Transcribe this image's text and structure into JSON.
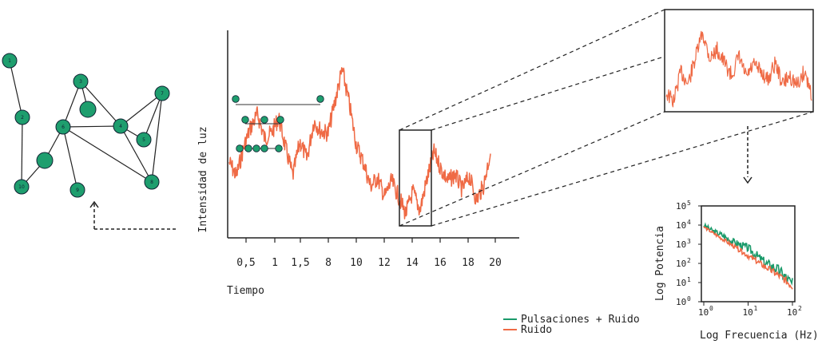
{
  "colors": {
    "green": "#1a9a6a",
    "node_fill": "#1e9e6e",
    "orange": "#ef6a45",
    "ink": "#1a1a1a"
  },
  "network": {
    "nodes": [
      {
        "id": "1",
        "label": "1"
      },
      {
        "id": "2",
        "label": "2"
      },
      {
        "id": "10",
        "label": "10"
      },
      {
        "id": "3",
        "label": "3"
      },
      {
        "id": "u1",
        "label": ""
      },
      {
        "id": "6",
        "label": "6"
      },
      {
        "id": "u2",
        "label": ""
      },
      {
        "id": "9",
        "label": "9"
      },
      {
        "id": "4",
        "label": "4"
      },
      {
        "id": "5",
        "label": "5"
      },
      {
        "id": "7",
        "label": "7"
      },
      {
        "id": "8",
        "label": "8"
      }
    ],
    "edges": [
      [
        "1",
        "2"
      ],
      [
        "2",
        "10"
      ],
      [
        "3",
        "u1"
      ],
      [
        "3",
        "6"
      ],
      [
        "3",
        "4"
      ],
      [
        "6",
        "u2"
      ],
      [
        "6",
        "9"
      ],
      [
        "6",
        "4"
      ],
      [
        "6",
        "8"
      ],
      [
        "u2",
        "10"
      ],
      [
        "4",
        "5"
      ],
      [
        "4",
        "7"
      ],
      [
        "4",
        "8"
      ],
      [
        "5",
        "7"
      ],
      [
        "7",
        "8"
      ]
    ]
  },
  "chart_data": [
    {
      "type": "line",
      "ylabel": "Intensidad de luz",
      "xlabel": "Tiempo",
      "x_tick_labels": [
        "0,5",
        "1",
        "1,5",
        "8",
        "10",
        "12",
        "14",
        "16",
        "18",
        "20"
      ],
      "series": [
        {
          "values": [
            0.38,
            0.3,
            0.46,
            0.58,
            0.66,
            0.52,
            0.55,
            0.64,
            0.46,
            0.3,
            0.5,
            0.4,
            0.62,
            0.56,
            0.55,
            0.74,
            0.92,
            0.72,
            0.48,
            0.38,
            0.24,
            0.29,
            0.18,
            0.27,
            0.18,
            0.08,
            0.21,
            0.1,
            0.28,
            0.44,
            0.34,
            0.27,
            0.31,
            0.22,
            0.3,
            0.16,
            0.24,
            0.44
          ]
        }
      ],
      "marker_rows": [
        {
          "count": 2,
          "row": 1
        },
        {
          "count": 3,
          "row": 2
        },
        {
          "count": 5,
          "row": 3
        }
      ]
    },
    {
      "type": "line",
      "description_role": "zoom-inset",
      "series": [
        {
          "values": [
            0.2,
            0.1,
            0.45,
            0.3,
            0.6,
            0.9,
            0.6,
            0.7,
            0.55,
            0.4,
            0.62,
            0.38,
            0.52,
            0.45,
            0.35,
            0.55,
            0.3,
            0.4,
            0.28,
            0.45,
            0.2
          ]
        }
      ]
    },
    {
      "type": "line",
      "log_scale": true,
      "xlabel": "Log Frecuencia (Hz)",
      "ylabel": "Log Potencia",
      "x_ticks": [
        {
          "base": "10",
          "exp": "0"
        },
        {
          "base": "10",
          "exp": "1"
        },
        {
          "base": "10",
          "exp": "2"
        }
      ],
      "y_ticks": [
        {
          "base": "10",
          "exp": "0"
        },
        {
          "base": "10",
          "exp": "1"
        },
        {
          "base": "10",
          "exp": "2"
        },
        {
          "base": "10",
          "exp": "3"
        },
        {
          "base": "10",
          "exp": "4"
        },
        {
          "base": "10",
          "exp": "5"
        }
      ],
      "x_range_log": [
        0,
        2
      ],
      "y_range_log": [
        0,
        5
      ],
      "series": [
        {
          "name": "Pulsaciones + Ruido",
          "color": "#1a9a6a",
          "x_log": [
            0,
            0.2,
            0.4,
            0.6,
            0.8,
            1.0,
            1.2,
            1.4,
            1.6,
            1.8,
            2.0
          ],
          "y_log": [
            4.0,
            3.7,
            3.5,
            3.2,
            3.0,
            2.8,
            2.4,
            2.0,
            1.8,
            1.4,
            0.9
          ]
        },
        {
          "name": "Ruido",
          "color": "#ef6a45",
          "x_log": [
            0,
            0.2,
            0.4,
            0.6,
            0.8,
            1.0,
            1.2,
            1.4,
            1.6,
            1.8,
            2.0
          ],
          "y_log": [
            3.9,
            3.6,
            3.3,
            3.0,
            2.7,
            2.4,
            2.1,
            1.8,
            1.5,
            1.2,
            0.8
          ]
        }
      ]
    }
  ],
  "legend": [
    {
      "name": "Pulsaciones + Ruido",
      "color": "#1a9a6a"
    },
    {
      "name": "Ruido",
      "color": "#ef6a45"
    }
  ]
}
